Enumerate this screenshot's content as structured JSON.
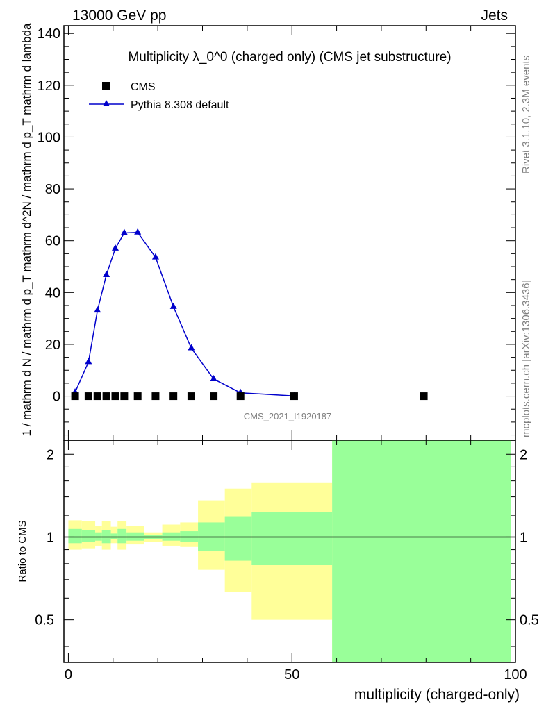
{
  "header": {
    "energy": "13000 GeV pp",
    "category": "Jets",
    "ylabel_main": "1 / mathrm d N / mathrm d p_T  mathrm d^2N / mathrm d p_T mathrm d lambda",
    "ylabel_ratio": "Ratio to CMS",
    "side_rivet": "Rivet 3.1.10,  2.3M events",
    "side_mcplots": "mcplots.cern.ch [arXiv:1306.3436]",
    "analysis_id": "CMS_2021_I1920187"
  },
  "chart_data": [
    {
      "type": "line",
      "title": "Multiplicity λ_0^0 (charged only) (CMS jet substructure)",
      "xlabel": "multiplicity (charged-only)",
      "ylabel": "1 / mathrm d N / mathrm d p_T  mathrm d^2N / mathrm d p_T mathrm d lambda",
      "xlim": [
        -1,
        100
      ],
      "ylim": [
        -17,
        143
      ],
      "xticks": [
        "0",
        "50",
        "100"
      ],
      "yticks": [
        "0",
        "20",
        "40",
        "60",
        "80",
        "100",
        "120",
        "140"
      ],
      "legend_position": "top-left",
      "series": [
        {
          "name": "CMS",
          "marker": "square",
          "color": "#000000",
          "x": [
            1.5,
            4.5,
            6.5,
            8.5,
            10.5,
            12.5,
            15.5,
            19.5,
            23.5,
            27.5,
            32.5,
            38.5,
            50.5,
            79.5
          ],
          "y": [
            0,
            0,
            0,
            0,
            0,
            0,
            0,
            0,
            0,
            0,
            0,
            0,
            0,
            0
          ]
        },
        {
          "name": "Pythia 8.308 default",
          "marker": "triangle",
          "color": "#0000cc",
          "x": [
            1.5,
            4.5,
            6.5,
            8.5,
            10.5,
            12.5,
            15.5,
            19.5,
            23.5,
            27.5,
            32.5,
            38.5,
            50.5
          ],
          "y": [
            1.5,
            13.2,
            33.1,
            46.8,
            57.0,
            63.0,
            63.2,
            53.6,
            34.5,
            18.5,
            6.6,
            1.3,
            0.1
          ]
        }
      ]
    },
    {
      "type": "area",
      "title": "Ratio to CMS",
      "xlabel": "multiplicity (charged-only)",
      "ylabel": "Ratio to CMS",
      "xlim": [
        -1,
        100
      ],
      "ylim": [
        0.35,
        2.25
      ],
      "xticks": [
        "0",
        "50",
        "100"
      ],
      "yticks": [
        "0.5",
        "1",
        "2"
      ],
      "reference_line": 1,
      "series": [
        {
          "name": "total uncertainty",
          "color": "#ffff99",
          "bins": [
            {
              "x0": 0,
              "x1": 3,
              "lo": 0.9,
              "hi": 1.15
            },
            {
              "x0": 3,
              "x1": 6,
              "lo": 0.91,
              "hi": 1.14
            },
            {
              "x0": 6,
              "x1": 7.5,
              "lo": 0.93,
              "hi": 1.1
            },
            {
              "x0": 7.5,
              "x1": 9.5,
              "lo": 0.9,
              "hi": 1.14
            },
            {
              "x0": 9.5,
              "x1": 11,
              "lo": 0.95,
              "hi": 1.09
            },
            {
              "x0": 11,
              "x1": 13,
              "lo": 0.9,
              "hi": 1.14
            },
            {
              "x0": 13,
              "x1": 17,
              "lo": 0.94,
              "hi": 1.1
            },
            {
              "x0": 17,
              "x1": 21,
              "lo": 0.96,
              "hi": 1.04
            },
            {
              "x0": 21,
              "x1": 25,
              "lo": 0.93,
              "hi": 1.11
            },
            {
              "x0": 25,
              "x1": 29,
              "lo": 0.92,
              "hi": 1.13
            },
            {
              "x0": 29,
              "x1": 35,
              "lo": 0.76,
              "hi": 1.36
            },
            {
              "x0": 35,
              "x1": 41,
              "lo": 0.63,
              "hi": 1.5
            },
            {
              "x0": 41,
              "x1": 59,
              "lo": 0.5,
              "hi": 1.58
            },
            {
              "x0": 59,
              "x1": 99,
              "lo": 0.35,
              "hi": 2.25
            }
          ]
        },
        {
          "name": "statistical uncertainty",
          "color": "#99ff99",
          "bins": [
            {
              "x0": 0,
              "x1": 3,
              "lo": 0.95,
              "hi": 1.07
            },
            {
              "x0": 3,
              "x1": 6,
              "lo": 0.96,
              "hi": 1.06
            },
            {
              "x0": 6,
              "x1": 7.5,
              "lo": 0.97,
              "hi": 1.04
            },
            {
              "x0": 7.5,
              "x1": 9.5,
              "lo": 0.95,
              "hi": 1.06
            },
            {
              "x0": 9.5,
              "x1": 11,
              "lo": 0.98,
              "hi": 1.03
            },
            {
              "x0": 11,
              "x1": 13,
              "lo": 0.95,
              "hi": 1.07
            },
            {
              "x0": 13,
              "x1": 17,
              "lo": 0.97,
              "hi": 1.04
            },
            {
              "x0": 17,
              "x1": 21,
              "lo": 0.985,
              "hi": 1.015
            },
            {
              "x0": 21,
              "x1": 25,
              "lo": 0.97,
              "hi": 1.04
            },
            {
              "x0": 25,
              "x1": 29,
              "lo": 0.96,
              "hi": 1.05
            },
            {
              "x0": 29,
              "x1": 35,
              "lo": 0.89,
              "hi": 1.13
            },
            {
              "x0": 35,
              "x1": 41,
              "lo": 0.82,
              "hi": 1.19
            },
            {
              "x0": 41,
              "x1": 59,
              "lo": 0.79,
              "hi": 1.23
            },
            {
              "x0": 59,
              "x1": 99,
              "lo": 0.35,
              "hi": 2.25
            }
          ]
        }
      ]
    }
  ]
}
